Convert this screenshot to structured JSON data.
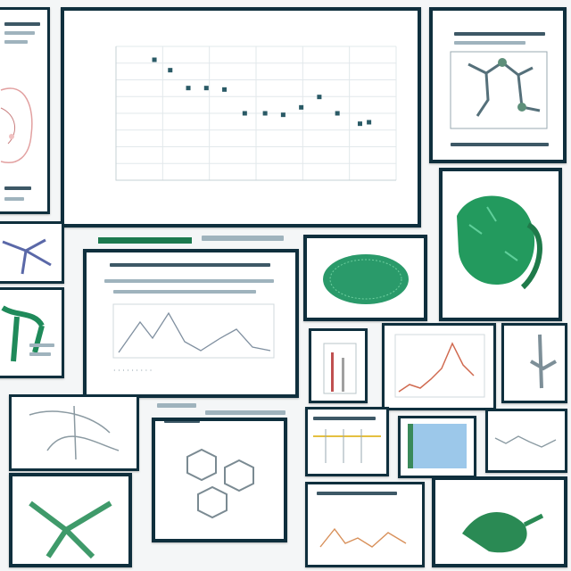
{
  "collage": {
    "colors": {
      "frame": "#0f2f3d",
      "accent_green": "#1d7a4f",
      "marker": "#2a5a66"
    }
  },
  "chart_data": {
    "type": "scatter",
    "title": "",
    "xlabel": "",
    "ylabel": "",
    "x_ticks": [
      "",
      "",
      "",
      "",
      "",
      "",
      ""
    ],
    "y_ticks": [
      "",
      "",
      "",
      "",
      "",
      "",
      "",
      "",
      ""
    ],
    "ylim": [
      0,
      9
    ],
    "grid": true,
    "points": [
      {
        "x": 0.85,
        "y": 8.1
      },
      {
        "x": 1.2,
        "y": 7.4
      },
      {
        "x": 1.6,
        "y": 6.2
      },
      {
        "x": 2.0,
        "y": 6.2
      },
      {
        "x": 2.4,
        "y": 6.1
      },
      {
        "x": 2.85,
        "y": 4.5
      },
      {
        "x": 3.3,
        "y": 4.5
      },
      {
        "x": 3.7,
        "y": 4.4
      },
      {
        "x": 4.1,
        "y": 4.9
      },
      {
        "x": 4.5,
        "y": 5.6
      },
      {
        "x": 4.9,
        "y": 4.5
      },
      {
        "x": 5.4,
        "y": 3.8
      },
      {
        "x": 5.6,
        "y": 3.9
      }
    ],
    "xlim": [
      0,
      6.2
    ]
  }
}
